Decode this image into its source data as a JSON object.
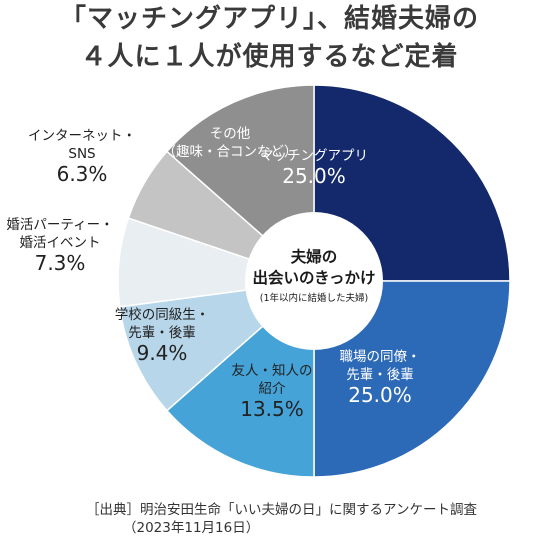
{
  "title_lines": [
    "「マッチングアプリ」、結婚夫婦の",
    "４人に１人が使用するなど定着"
  ],
  "center_label": {
    "line1": "夫婦の",
    "line2": "出会いのきっかけ",
    "line3": "(1年以内に結婚した夫婦)"
  },
  "source": {
    "line1": "［出典］明治安田生命「いい夫婦の日」に関するアンケート調査",
    "line2": "（2023年11月16日）"
  },
  "chart_data": {
    "type": "pie",
    "unit": "%",
    "slices": [
      {
        "label_lines": [
          "マッチングアプリ"
        ],
        "value": 25.0,
        "value_label": "25.0%",
        "color": "#13296b",
        "label_placement": "inside"
      },
      {
        "label_lines": [
          "職場の同僚・",
          "先輩・後輩"
        ],
        "value": 25.0,
        "value_label": "25.0%",
        "color": "#2c6ab8",
        "label_placement": "inside"
      },
      {
        "label_lines": [
          "友人・知人の",
          "紹介"
        ],
        "value": 13.5,
        "value_label": "13.5%",
        "color": "#45a3d8",
        "label_placement": "inside"
      },
      {
        "label_lines": [
          "学校の同級生・",
          "先輩・後輩"
        ],
        "value": 9.4,
        "value_label": "9.4%",
        "color": "#b8d6e9",
        "label_placement": "inside"
      },
      {
        "label_lines": [
          "婚活パーティー・",
          "婚活イベント"
        ],
        "value": 7.3,
        "value_label": "7.3%",
        "color": "#e9eef2",
        "label_placement": "outside"
      },
      {
        "label_lines": [
          "インターネット・",
          "SNS"
        ],
        "value": 6.3,
        "value_label": "6.3%",
        "color": "#c4c4c4",
        "label_placement": "outside"
      },
      {
        "label_lines": [
          "その他",
          "（趣味・合コンなど）"
        ],
        "value": 13.5,
        "value_label": "",
        "color": "#8f8f8f",
        "label_placement": "inside"
      }
    ]
  }
}
